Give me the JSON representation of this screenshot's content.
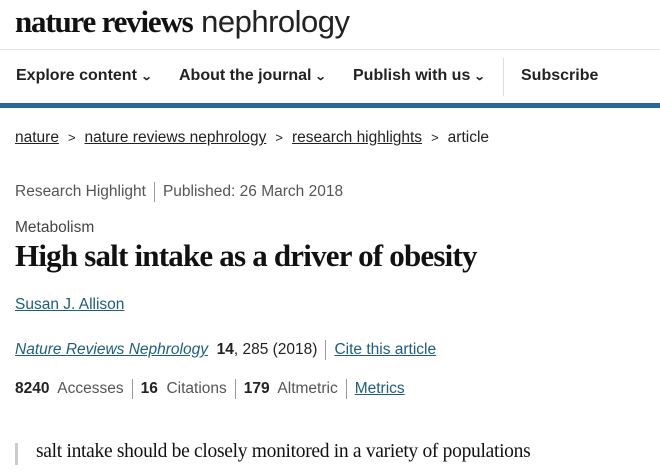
{
  "logo": {
    "bold": "nature reviews",
    "light": "nephrology"
  },
  "nav": {
    "items": [
      "Explore content",
      "About the journal",
      "Publish with us"
    ],
    "subscribe": "Subscribe"
  },
  "breadcrumb": [
    "nature",
    "nature reviews nephrology",
    "research highlights",
    "article"
  ],
  "meta": {
    "type": "Research Highlight",
    "published": "Published: 26 March 2018"
  },
  "article": {
    "subject": "Metabolism",
    "title": "High salt intake as a driver of obesity",
    "author": "Susan J. Allison"
  },
  "citation": {
    "journal": "Nature Reviews Nephrology",
    "volume": "14",
    "rest": ", 285 (2018)",
    "cite_link": "Cite this article"
  },
  "metrics": {
    "accesses": "8240",
    "accesses_label": "Accesses",
    "citations": "16",
    "citations_label": "Citations",
    "altmetric": "179",
    "altmetric_label": "Altmetric",
    "link": "Metrics"
  },
  "quote": "salt intake should be closely monitored in a variety of populations",
  "colors": {
    "accent_bar": "#2b6896",
    "link": "#1c5d80"
  }
}
